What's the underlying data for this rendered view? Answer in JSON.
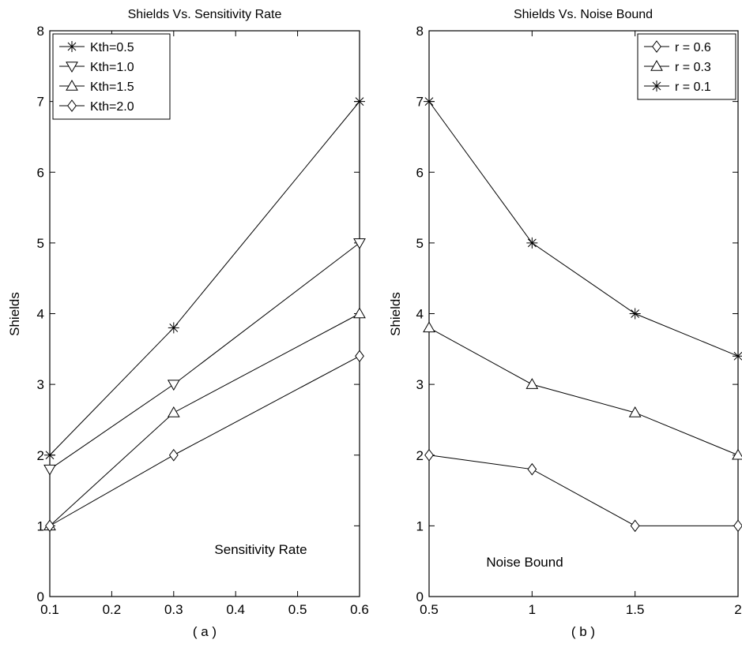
{
  "chart_data": [
    {
      "type": "line",
      "title": "Shields Vs. Sensitivity Rate",
      "xlabel": "Sensitivity Rate",
      "ylabel": "Shields",
      "caption": "( a )",
      "xlim": [
        0.1,
        0.6
      ],
      "ylim": [
        0,
        8
      ],
      "xticks": [
        "0.1",
        "0.2",
        "0.3",
        "0.4",
        "0.5",
        "0.6"
      ],
      "yticks": [
        "0",
        "1",
        "2",
        "3",
        "4",
        "5",
        "6",
        "7",
        "8"
      ],
      "legend_position": "top-left",
      "x": [
        0.1,
        0.3,
        0.6
      ],
      "series": [
        {
          "name": "Kth=0.5",
          "marker": "star",
          "values": [
            2,
            3.8,
            7
          ]
        },
        {
          "name": "Kth=1.0",
          "marker": "triangle-down",
          "values": [
            1.8,
            3,
            5
          ]
        },
        {
          "name": "Kth=1.5",
          "marker": "triangle-up",
          "values": [
            1,
            2.6,
            4
          ]
        },
        {
          "name": "Kth=2.0",
          "marker": "diamond",
          "values": [
            1,
            2,
            3.4
          ]
        }
      ]
    },
    {
      "type": "line",
      "title": "Shields Vs. Noise Bound",
      "xlabel": "Noise Bound",
      "ylabel": "Shields",
      "caption": "( b )",
      "xlim": [
        0.5,
        2
      ],
      "ylim": [
        0,
        8
      ],
      "xticks": [
        "0.5",
        "1",
        "1.5",
        "2"
      ],
      "yticks": [
        "0",
        "1",
        "2",
        "3",
        "4",
        "5",
        "6",
        "7",
        "8"
      ],
      "legend_position": "top-right",
      "x": [
        0.5,
        1,
        1.5,
        2
      ],
      "series": [
        {
          "name": "r = 0.6",
          "marker": "diamond",
          "values": [
            2,
            1.8,
            1,
            1
          ]
        },
        {
          "name": "r = 0.3",
          "marker": "triangle-up",
          "values": [
            3.8,
            3,
            2.6,
            2
          ]
        },
        {
          "name": "r = 0.1",
          "marker": "star",
          "values": [
            7,
            5,
            4,
            3.4
          ]
        }
      ]
    }
  ]
}
